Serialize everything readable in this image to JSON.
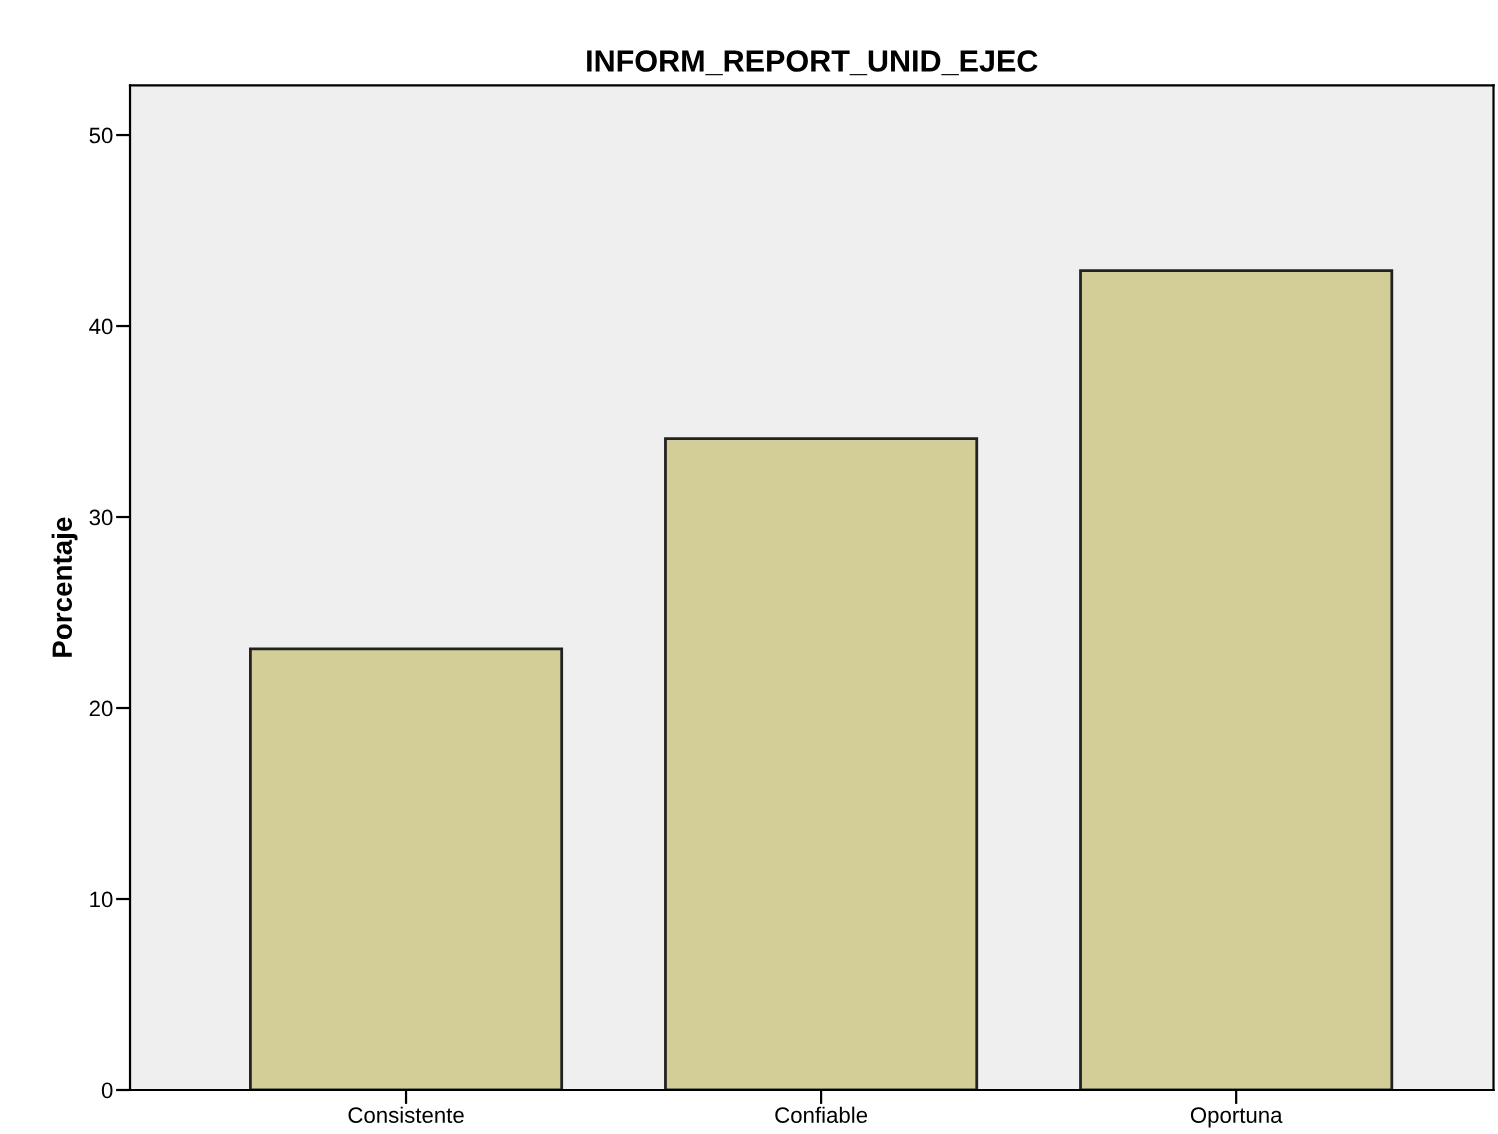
{
  "chart_data": {
    "type": "bar",
    "title": "INFORM_REPORT_UNID_EJEC",
    "ylabel": "Porcentaje",
    "categories": [
      "Consistente",
      "Confiable",
      "Oportuna"
    ],
    "values": [
      23.1,
      34.1,
      42.9
    ],
    "color": "#d3ce98",
    "ylim": [
      0,
      52.6
    ],
    "yticks": [
      0,
      10,
      20,
      30,
      40,
      50
    ],
    "grid": false,
    "legend": false
  }
}
